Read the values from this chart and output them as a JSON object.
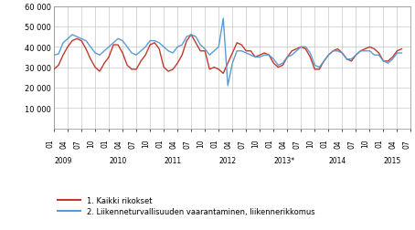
{
  "title": "",
  "line1_color": "#c0392b",
  "line2_color": "#5b9bd5",
  "line1_label": "1. Kaikki rikokset",
  "line2_label": "2. Liikenneturvallisuuden vaarantaminen, liikennerikkomus",
  "ylim": [
    0,
    60000
  ],
  "yticks": [
    0,
    10000,
    20000,
    30000,
    40000,
    50000,
    60000
  ],
  "ytick_labels": [
    "",
    "10 000",
    "20 000",
    "30 000",
    "40 000",
    "50 000",
    "60 000"
  ],
  "background_color": "#ffffff",
  "grid_color": "#c8c8c8",
  "line_width": 1.0,
  "year_labels": [
    "2009",
    "2010",
    "2011",
    "2012",
    "2013*",
    "2014",
    "2015"
  ],
  "year_month_positions": [
    0,
    3,
    6,
    9,
    12,
    15,
    18,
    21,
    24,
    27,
    30,
    33,
    36,
    39,
    42,
    45,
    48,
    51,
    54,
    57,
    60,
    63,
    66,
    69,
    72,
    75,
    78
  ],
  "month_tick_labels": [
    "01",
    "04",
    "07",
    "10",
    "01",
    "04",
    "07",
    "10",
    "01",
    "04",
    "07",
    "10",
    "01",
    "04",
    "07",
    "10",
    "01",
    "04",
    "07",
    "10",
    "01",
    "04",
    "07",
    "10",
    "01",
    "04",
    "07"
  ],
  "line1_values": [
    29000,
    31000,
    36000,
    40000,
    43000,
    44000,
    43000,
    39000,
    34000,
    30000,
    28000,
    32000,
    35000,
    41000,
    41000,
    37000,
    31000,
    29000,
    29000,
    33000,
    36000,
    41000,
    42000,
    39000,
    30000,
    28000,
    29000,
    32000,
    36000,
    43000,
    46000,
    42000,
    38000,
    38000,
    29000,
    30000,
    29000,
    27000,
    32000,
    37000,
    42000,
    41000,
    38000,
    38000,
    35000,
    36000,
    37000,
    36000,
    32000,
    30000,
    31000,
    35000,
    38000,
    39000,
    40000,
    39000,
    35000,
    29000,
    29000,
    33000,
    36000,
    38000,
    39000,
    37000,
    34000,
    33000,
    36000,
    38000,
    39000,
    40000,
    39000,
    37000,
    33000,
    33000,
    35000,
    38000,
    39000
  ],
  "line2_values": [
    36000,
    36500,
    42000,
    44000,
    46000,
    45000,
    44000,
    43000,
    40000,
    37000,
    36000,
    38000,
    40000,
    42000,
    44000,
    43000,
    40000,
    37000,
    36000,
    38000,
    40000,
    43000,
    43000,
    42000,
    40000,
    38000,
    37000,
    40000,
    41000,
    45000,
    46000,
    45000,
    41000,
    39000,
    36000,
    38000,
    40000,
    54000,
    21000,
    32000,
    38000,
    38000,
    37000,
    36000,
    35000,
    35000,
    36000,
    36000,
    34000,
    31000,
    32000,
    35000,
    36000,
    38000,
    40000,
    40000,
    37000,
    31000,
    30000,
    33000,
    36000,
    38000,
    38000,
    37000,
    34000,
    34000,
    36000,
    38000,
    38000,
    38000,
    36000,
    36000,
    33000,
    32000,
    34000,
    37000,
    37000
  ]
}
